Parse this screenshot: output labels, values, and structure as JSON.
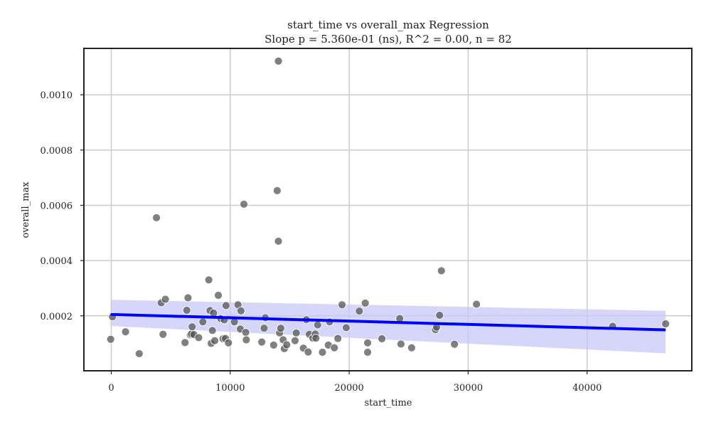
{
  "chart_data": {
    "type": "scatter",
    "title": "start_time vs overall_max Regression",
    "subtitle": "Slope p = 5.360e-01 (ns), R^2 = 0.00, n = 82",
    "xlabel": "start_time",
    "ylabel": "overall_max",
    "xlim": [
      -2300,
      48800
    ],
    "ylim": [
      1e-06,
      0.001168
    ],
    "x_ticks": [
      0,
      10000,
      20000,
      30000,
      40000
    ],
    "x_tick_labels": [
      "0",
      "10000",
      "20000",
      "30000",
      "40000"
    ],
    "y_ticks": [
      0.0002,
      0.0004,
      0.0006,
      0.0008,
      0.001
    ],
    "y_tick_labels": [
      "0.0002",
      "0.0004",
      "0.0006",
      "0.0008",
      "0.0010"
    ],
    "grid": true,
    "points": [
      [
        -50,
        0.000115
      ],
      [
        100,
        0.000196
      ],
      [
        1200,
        0.000142
      ],
      [
        2350,
        6.3e-05
      ],
      [
        3800,
        0.000555
      ],
      [
        4200,
        0.000247
      ],
      [
        4350,
        0.000133
      ],
      [
        4550,
        0.00026
      ],
      [
        6200,
        0.000103
      ],
      [
        6350,
        0.00022
      ],
      [
        6450,
        0.000265
      ],
      [
        6650,
        0.000131
      ],
      [
        6750,
        0.000134
      ],
      [
        6800,
        0.00016
      ],
      [
        6950,
        0.000132
      ],
      [
        7350,
        0.000121
      ],
      [
        7700,
        0.000178
      ],
      [
        8200,
        0.00033
      ],
      [
        8300,
        0.000219
      ],
      [
        8400,
        0.0001
      ],
      [
        8500,
        0.000147
      ],
      [
        8600,
        0.00021
      ],
      [
        8700,
        0.00011
      ],
      [
        9000,
        0.000274
      ],
      [
        9200,
        0.00019
      ],
      [
        9400,
        0.000117
      ],
      [
        9500,
        0.000185
      ],
      [
        9600,
        0.000118
      ],
      [
        9650,
        0.000237
      ],
      [
        9850,
        0.000102
      ],
      [
        10350,
        0.000178
      ],
      [
        10650,
        0.00024
      ],
      [
        10850,
        0.000152
      ],
      [
        10900,
        0.000218
      ],
      [
        11150,
        0.000604
      ],
      [
        11300,
        0.00014
      ],
      [
        11350,
        0.000113
      ],
      [
        12650,
        0.000105
      ],
      [
        12850,
        0.000155
      ],
      [
        12950,
        0.000193
      ],
      [
        13650,
        9.4e-05
      ],
      [
        13950,
        0.000653
      ],
      [
        14050,
        0.001122
      ],
      [
        14050,
        0.00047
      ],
      [
        14150,
        0.000138
      ],
      [
        14250,
        0.000155
      ],
      [
        14450,
        0.000113
      ],
      [
        14550,
        8.1e-05
      ],
      [
        14750,
        9.5e-05
      ],
      [
        15450,
        0.00011
      ],
      [
        15550,
        0.000138
      ],
      [
        16150,
        8.3e-05
      ],
      [
        16400,
        0.000186
      ],
      [
        16550,
        6.9e-05
      ],
      [
        16650,
        0.000133
      ],
      [
        16950,
        0.000119
      ],
      [
        17150,
        0.000134
      ],
      [
        17200,
        0.000119
      ],
      [
        17350,
        0.000167
      ],
      [
        17750,
        6.8e-05
      ],
      [
        18250,
        9.4e-05
      ],
      [
        18350,
        0.000178
      ],
      [
        18750,
        8.4e-05
      ],
      [
        19050,
        0.000118
      ],
      [
        19400,
        0.00024
      ],
      [
        19750,
        0.000157
      ],
      [
        20850,
        0.000217
      ],
      [
        21350,
        0.000246
      ],
      [
        21550,
        0.000102
      ],
      [
        21550,
        6.8e-05
      ],
      [
        22750,
        0.000117
      ],
      [
        24250,
        0.00019
      ],
      [
        24350,
        9.8e-05
      ],
      [
        25250,
        8.4e-05
      ],
      [
        27250,
        0.00015
      ],
      [
        27350,
        0.000159
      ],
      [
        27600,
        0.000202
      ],
      [
        27750,
        0.000363
      ],
      [
        28850,
        9.7e-05
      ],
      [
        30700,
        0.000242
      ],
      [
        42150,
        0.000162
      ],
      [
        46600,
        0.000171
      ]
    ],
    "regression_line": {
      "x": [
        -50,
        46600
      ],
      "y": [
        0.000205,
        0.000149
      ]
    },
    "confidence_band": {
      "x": [
        -50,
        46600
      ],
      "upper": [
        0.000258,
        0.000218
      ],
      "lower": [
        0.000163,
        6.4e-05
      ]
    },
    "colors": {
      "points": "#555555",
      "point_edge": "#ffffff",
      "line": "#0000ff",
      "band": "#c8c8fa",
      "grid": "#cccccc",
      "frame": "#222222"
    }
  }
}
